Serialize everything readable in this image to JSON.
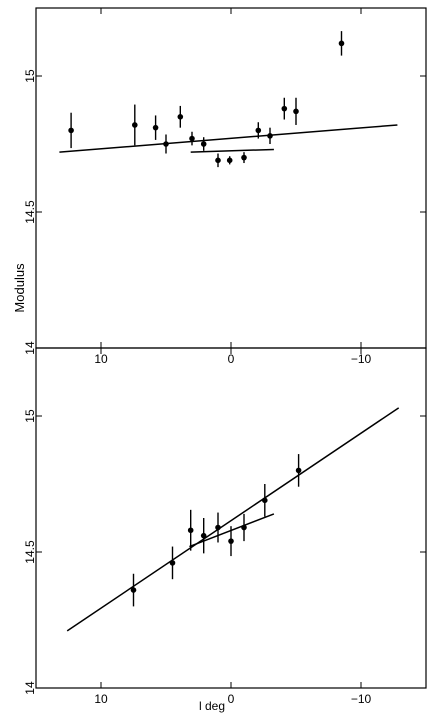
{
  "chart_data": [
    {
      "type": "scatter",
      "panel": "top",
      "title": "",
      "xlabel": "",
      "ylabel": "Modulus",
      "xlim": [
        15,
        -15
      ],
      "ylim": [
        14,
        15.25
      ],
      "x_reversed": true,
      "x_ticks": [
        10,
        0,
        -10
      ],
      "x_tick_labels": [
        "10",
        "0",
        "−10"
      ],
      "y_ticks": [
        14,
        14.5,
        15
      ],
      "y_tick_labels": [
        "14",
        "14.5",
        "15"
      ],
      "grid": false,
      "legend": "none",
      "series": [
        {
          "points": [
            {
              "x": 12.3,
              "y": 14.8,
              "err": 0.065
            },
            {
              "x": 7.4,
              "y": 14.82,
              "err": 0.075
            },
            {
              "x": 5.8,
              "y": 14.81,
              "err": 0.045
            },
            {
              "x": 5.0,
              "y": 14.75,
              "err": 0.035
            },
            {
              "x": 3.9,
              "y": 14.85,
              "err": 0.04
            },
            {
              "x": 3.0,
              "y": 14.77,
              "err": 0.025
            },
            {
              "x": 2.1,
              "y": 14.75,
              "err": 0.025
            },
            {
              "x": 1.0,
              "y": 14.69,
              "err": 0.025
            },
            {
              "x": 0.1,
              "y": 14.69,
              "err": 0.015
            },
            {
              "x": -1.0,
              "y": 14.7,
              "err": 0.02
            },
            {
              "x": -2.1,
              "y": 14.8,
              "err": 0.03
            },
            {
              "x": -3.0,
              "y": 14.78,
              "err": 0.03
            },
            {
              "x": -4.1,
              "y": 14.88,
              "err": 0.04
            },
            {
              "x": -5.0,
              "y": 14.87,
              "err": 0.05
            },
            {
              "x": -8.5,
              "y": 15.12,
              "err": 0.045
            }
          ]
        }
      ],
      "fit_lines": [
        {
          "x": [
            13.2,
            -12.8
          ],
          "y": [
            14.72,
            14.82
          ]
        },
        {
          "x": [
            3.1,
            -3.3
          ],
          "y": [
            14.72,
            14.73
          ]
        }
      ]
    },
    {
      "type": "scatter",
      "panel": "bottom",
      "title": "",
      "xlabel": "l deg",
      "ylabel": "Modulus",
      "xlim": [
        15,
        -15
      ],
      "ylim": [
        14,
        15.25
      ],
      "x_reversed": true,
      "x_ticks": [
        10,
        0,
        -10
      ],
      "x_tick_labels": [
        "10",
        "0",
        "−10"
      ],
      "y_ticks": [
        14,
        14.5,
        15
      ],
      "y_tick_labels": [
        "14",
        "14.5",
        "15"
      ],
      "grid": false,
      "legend": "none",
      "series": [
        {
          "points": [
            {
              "x": 7.5,
              "y": 14.36,
              "err": 0.06
            },
            {
              "x": 4.5,
              "y": 14.46,
              "err": 0.06
            },
            {
              "x": 3.1,
              "y": 14.58,
              "err": 0.075
            },
            {
              "x": 2.1,
              "y": 14.56,
              "err": 0.065
            },
            {
              "x": 1.0,
              "y": 14.59,
              "err": 0.055
            },
            {
              "x": 0.0,
              "y": 14.54,
              "err": 0.055
            },
            {
              "x": -1.0,
              "y": 14.59,
              "err": 0.05
            },
            {
              "x": -2.6,
              "y": 14.69,
              "err": 0.06
            },
            {
              "x": -5.2,
              "y": 14.8,
              "err": 0.06
            }
          ]
        }
      ],
      "fit_lines": [
        {
          "x": [
            12.6,
            -12.9
          ],
          "y": [
            14.21,
            15.03
          ]
        },
        {
          "x": [
            3.2,
            -3.3
          ],
          "y": [
            14.52,
            14.64
          ]
        }
      ]
    }
  ]
}
